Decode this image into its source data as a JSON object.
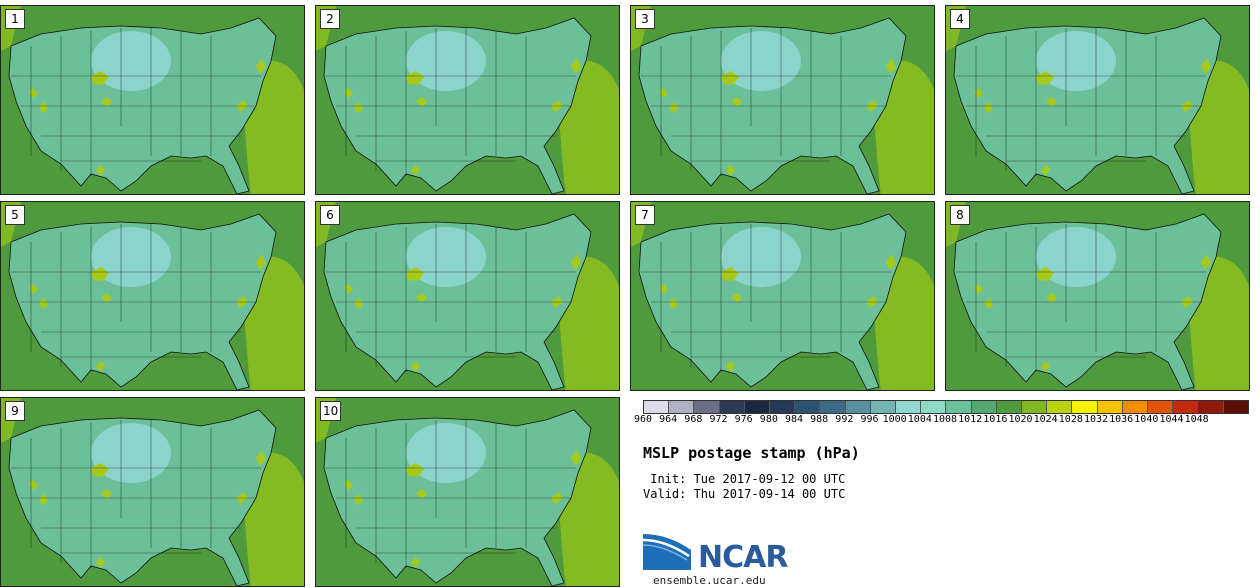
{
  "title": "MSLP postage stamp (hPa)",
  "init": " Init: Tue 2017-09-12 00 UTC",
  "valid": "Valid: Thu 2017-09-14 00 UTC",
  "logo_text": "NCAR",
  "logo_url": "ensemble.ucar.edu",
  "members": [
    "1",
    "2",
    "3",
    "4",
    "5",
    "6",
    "7",
    "8",
    "9",
    "10"
  ],
  "colorbar": {
    "labels": [
      "960",
      "964",
      "968",
      "972",
      "976",
      "980",
      "984",
      "988",
      "992",
      "996",
      "1000",
      "1004",
      "1008",
      "1012",
      "1016",
      "1020",
      "1024",
      "1028",
      "1032",
      "1036",
      "1040",
      "1044",
      "1048"
    ],
    "colors": [
      "#dcdce8",
      "#b0b0c4",
      "#6b6f86",
      "#2e3a52",
      "#1a2840",
      "#243a58",
      "#2e5272",
      "#3d6b86",
      "#5b8fa0",
      "#74b3b3",
      "#8fd6d0",
      "#8ed9c4",
      "#6cc099",
      "#57a870",
      "#4e9a3d",
      "#7fb81f",
      "#b9d40f",
      "#f4f100",
      "#f7c300",
      "#f38e00",
      "#e25300",
      "#c22a08",
      "#8e1a0a",
      "#5e1008"
    ]
  }
}
